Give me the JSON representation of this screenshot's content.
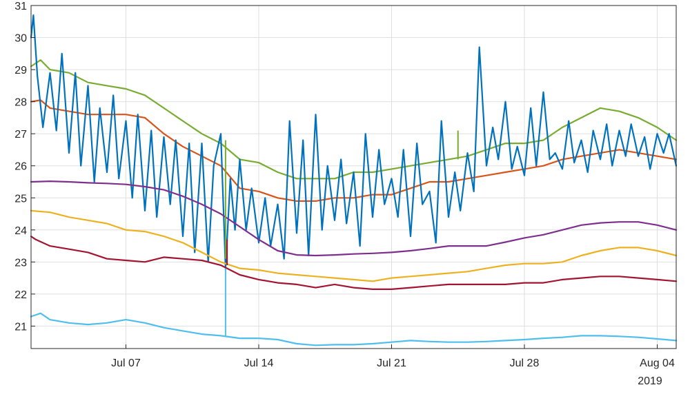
{
  "chart_data": {
    "type": "line",
    "title": "",
    "xlabel": "",
    "ylabel": "",
    "x_start": "2019-07-02",
    "x_end": "2019-08-05",
    "xlim": [
      "2019-07-02",
      "2019-08-05"
    ],
    "ylim": [
      20.3,
      31
    ],
    "grid": true,
    "legend": "none",
    "x_ticks": [
      {
        "date": "2019-07-07",
        "label": "Jul 07"
      },
      {
        "date": "2019-07-14",
        "label": "Jul 14"
      },
      {
        "date": "2019-07-21",
        "label": "Jul 21"
      },
      {
        "date": "2019-07-28",
        "label": "Jul 28"
      },
      {
        "date": "2019-08-04",
        "label": "Aug 04"
      }
    ],
    "x_secondary_label": "2019",
    "y_ticks": [
      21,
      22,
      23,
      24,
      25,
      26,
      27,
      28,
      29,
      30,
      31
    ],
    "series": [
      {
        "color": "#77ac30",
        "x": [
          "2019-07-02",
          "2019-07-02 12:00",
          "2019-07-03",
          "2019-07-04",
          "2019-07-05",
          "2019-07-06",
          "2019-07-07",
          "2019-07-08",
          "2019-07-09",
          "2019-07-10",
          "2019-07-11",
          "2019-07-12",
          "2019-07-13",
          "2019-07-14",
          "2019-07-15",
          "2019-07-16",
          "2019-07-17",
          "2019-07-18",
          "2019-07-19",
          "2019-07-20",
          "2019-07-21",
          "2019-07-22",
          "2019-07-23",
          "2019-07-24",
          "2019-07-25",
          "2019-07-26",
          "2019-07-27",
          "2019-07-28",
          "2019-07-29",
          "2019-07-30",
          "2019-07-31",
          "2019-08-01",
          "2019-08-02",
          "2019-08-03",
          "2019-08-04",
          "2019-08-05"
        ],
        "y": [
          29.1,
          29.3,
          29.0,
          28.9,
          28.6,
          28.5,
          28.4,
          28.2,
          27.8,
          27.4,
          27.0,
          26.7,
          26.2,
          26.1,
          25.8,
          25.6,
          25.6,
          25.6,
          25.8,
          25.8,
          25.9,
          26.0,
          26.1,
          26.2,
          26.3,
          26.5,
          26.7,
          26.7,
          26.8,
          27.2,
          27.5,
          27.8,
          27.7,
          27.5,
          27.2,
          26.8
        ]
      },
      {
        "color": "#d95319",
        "x": [
          "2019-07-02",
          "2019-07-02 12:00",
          "2019-07-03",
          "2019-07-04",
          "2019-07-05",
          "2019-07-06",
          "2019-07-07",
          "2019-07-08",
          "2019-07-09",
          "2019-07-10",
          "2019-07-11",
          "2019-07-12",
          "2019-07-13",
          "2019-07-14",
          "2019-07-15",
          "2019-07-16",
          "2019-07-17",
          "2019-07-18",
          "2019-07-19",
          "2019-07-20",
          "2019-07-21",
          "2019-07-22",
          "2019-07-23",
          "2019-07-24",
          "2019-07-25",
          "2019-07-26",
          "2019-07-27",
          "2019-07-28",
          "2019-07-29",
          "2019-07-30",
          "2019-07-31",
          "2019-08-01",
          "2019-08-02",
          "2019-08-03",
          "2019-08-04",
          "2019-08-05"
        ],
        "y": [
          28.0,
          28.05,
          27.8,
          27.7,
          27.6,
          27.6,
          27.6,
          27.5,
          27.0,
          26.6,
          26.3,
          26.0,
          25.3,
          25.2,
          25.0,
          24.9,
          24.9,
          25.0,
          25.0,
          25.1,
          25.1,
          25.3,
          25.5,
          25.5,
          25.6,
          25.7,
          25.8,
          25.9,
          26.0,
          26.2,
          26.3,
          26.4,
          26.5,
          26.4,
          26.3,
          26.2
        ]
      },
      {
        "color": "#0072bd",
        "x": [
          "2019-07-02",
          "2019-07-02 03:00",
          "2019-07-02 08:00",
          "2019-07-02 15:00",
          "2019-07-03",
          "2019-07-03 08:00",
          "2019-07-03 15:00",
          "2019-07-04",
          "2019-07-04 08:00",
          "2019-07-04 15:00",
          "2019-07-05",
          "2019-07-05 08:00",
          "2019-07-05 15:00",
          "2019-07-06",
          "2019-07-06 08:00",
          "2019-07-06 15:00",
          "2019-07-07",
          "2019-07-07 08:00",
          "2019-07-07 15:00",
          "2019-07-08",
          "2019-07-08 08:00",
          "2019-07-08 15:00",
          "2019-07-09",
          "2019-07-09 08:00",
          "2019-07-09 15:00",
          "2019-07-10",
          "2019-07-10 08:00",
          "2019-07-10 15:00",
          "2019-07-11",
          "2019-07-11 08:00",
          "2019-07-11 15:00",
          "2019-07-12",
          "2019-07-12 06:00",
          "2019-07-12 12:00",
          "2019-07-12 18:00",
          "2019-07-13",
          "2019-07-13 08:00",
          "2019-07-13 15:00",
          "2019-07-14",
          "2019-07-14 08:00",
          "2019-07-14 15:00",
          "2019-07-15",
          "2019-07-15 08:00",
          "2019-07-15 15:00",
          "2019-07-16",
          "2019-07-16 08:00",
          "2019-07-16 15:00",
          "2019-07-17",
          "2019-07-17 08:00",
          "2019-07-17 15:00",
          "2019-07-18",
          "2019-07-18 08:00",
          "2019-07-18 15:00",
          "2019-07-19",
          "2019-07-19 08:00",
          "2019-07-19 15:00",
          "2019-07-20",
          "2019-07-20 08:00",
          "2019-07-20 15:00",
          "2019-07-21",
          "2019-07-21 08:00",
          "2019-07-21 15:00",
          "2019-07-22",
          "2019-07-22 08:00",
          "2019-07-22 15:00",
          "2019-07-23",
          "2019-07-23 08:00",
          "2019-07-23 15:00",
          "2019-07-24",
          "2019-07-24 08:00",
          "2019-07-24 15:00",
          "2019-07-25",
          "2019-07-25 08:00",
          "2019-07-25 15:00",
          "2019-07-26",
          "2019-07-26 08:00",
          "2019-07-26 15:00",
          "2019-07-27",
          "2019-07-27 08:00",
          "2019-07-27 15:00",
          "2019-07-28",
          "2019-07-28 08:00",
          "2019-07-28 15:00",
          "2019-07-29",
          "2019-07-29 08:00",
          "2019-07-29 15:00",
          "2019-07-30",
          "2019-07-30 08:00",
          "2019-07-30 15:00",
          "2019-07-31",
          "2019-07-31 08:00",
          "2019-07-31 15:00",
          "2019-08-01",
          "2019-08-01 08:00",
          "2019-08-01 15:00",
          "2019-08-02",
          "2019-08-02 08:00",
          "2019-08-02 15:00",
          "2019-08-03",
          "2019-08-03 08:00",
          "2019-08-03 15:00",
          "2019-08-04",
          "2019-08-04 08:00",
          "2019-08-04 15:00",
          "2019-08-05"
        ],
        "y": [
          30.0,
          30.7,
          28.8,
          27.2,
          28.9,
          27.1,
          29.5,
          26.4,
          28.9,
          26.0,
          28.5,
          25.5,
          27.8,
          25.8,
          28.2,
          25.6,
          27.4,
          25.0,
          27.6,
          24.6,
          27.1,
          24.4,
          26.9,
          24.8,
          26.8,
          23.8,
          26.7,
          23.3,
          26.7,
          23.0,
          26.0,
          27.0,
          22.8,
          25.6,
          24.0,
          26.2,
          24.0,
          25.3,
          23.6,
          25.0,
          23.5,
          24.8,
          23.1,
          27.4,
          23.9,
          26.8,
          23.2,
          27.6,
          24.0,
          26.0,
          24.3,
          26.2,
          24.2,
          25.8,
          23.5,
          27.0,
          24.4,
          26.5,
          24.8,
          25.6,
          24.4,
          26.5,
          23.8,
          26.7,
          24.8,
          25.2,
          23.6,
          27.4,
          24.4,
          25.8,
          24.6,
          26.4,
          25.2,
          29.7,
          26.0,
          27.2,
          26.2,
          28.0,
          25.9,
          26.6,
          25.7,
          27.8,
          26.0,
          28.3,
          26.2,
          26.4,
          25.9,
          27.4,
          26.1,
          26.8,
          25.8,
          27.1,
          26.2,
          27.3,
          26.0,
          27.1,
          26.3,
          27.3,
          26.3,
          26.9,
          25.9,
          27.0,
          26.4,
          27.0,
          26.0
        ]
      },
      {
        "color": "#7e2f8e",
        "x": [
          "2019-07-02",
          "2019-07-03",
          "2019-07-04",
          "2019-07-05",
          "2019-07-06",
          "2019-07-07",
          "2019-07-08",
          "2019-07-09",
          "2019-07-10",
          "2019-07-11",
          "2019-07-12",
          "2019-07-13",
          "2019-07-14",
          "2019-07-15",
          "2019-07-16",
          "2019-07-17",
          "2019-07-18",
          "2019-07-19",
          "2019-07-20",
          "2019-07-21",
          "2019-07-22",
          "2019-07-23",
          "2019-07-24",
          "2019-07-25",
          "2019-07-26",
          "2019-07-27",
          "2019-07-28",
          "2019-07-29",
          "2019-07-30",
          "2019-07-31",
          "2019-08-01",
          "2019-08-02",
          "2019-08-03",
          "2019-08-04",
          "2019-08-05"
        ],
        "y": [
          25.5,
          25.52,
          25.5,
          25.47,
          25.45,
          25.42,
          25.35,
          25.25,
          25.05,
          24.8,
          24.5,
          24.1,
          23.7,
          23.35,
          23.22,
          23.2,
          23.22,
          23.25,
          23.27,
          23.3,
          23.35,
          23.42,
          23.5,
          23.5,
          23.5,
          23.62,
          23.75,
          23.85,
          24.0,
          24.15,
          24.22,
          24.25,
          24.25,
          24.15,
          24.0
        ]
      },
      {
        "color": "#edb120",
        "x": [
          "2019-07-02",
          "2019-07-03",
          "2019-07-04",
          "2019-07-05",
          "2019-07-06",
          "2019-07-07",
          "2019-07-08",
          "2019-07-09",
          "2019-07-10",
          "2019-07-11",
          "2019-07-12",
          "2019-07-13",
          "2019-07-14",
          "2019-07-15",
          "2019-07-16",
          "2019-07-17",
          "2019-07-18",
          "2019-07-19",
          "2019-07-20",
          "2019-07-21",
          "2019-07-22",
          "2019-07-23",
          "2019-07-24",
          "2019-07-25",
          "2019-07-26",
          "2019-07-27",
          "2019-07-28",
          "2019-07-29",
          "2019-07-30",
          "2019-07-31",
          "2019-08-01",
          "2019-08-02",
          "2019-08-03",
          "2019-08-04",
          "2019-08-05"
        ],
        "y": [
          24.6,
          24.55,
          24.4,
          24.3,
          24.2,
          24.0,
          23.95,
          23.8,
          23.6,
          23.3,
          23.0,
          22.8,
          22.75,
          22.65,
          22.6,
          22.55,
          22.5,
          22.45,
          22.4,
          22.5,
          22.55,
          22.6,
          22.65,
          22.7,
          22.8,
          22.9,
          22.95,
          22.95,
          23.0,
          23.2,
          23.35,
          23.45,
          23.45,
          23.35,
          23.2
        ]
      },
      {
        "color": "#a2142f",
        "x": [
          "2019-07-02",
          "2019-07-02 06:00",
          "2019-07-03",
          "2019-07-04",
          "2019-07-05",
          "2019-07-06",
          "2019-07-07",
          "2019-07-08",
          "2019-07-09",
          "2019-07-10",
          "2019-07-11",
          "2019-07-12",
          "2019-07-13",
          "2019-07-14",
          "2019-07-15",
          "2019-07-16",
          "2019-07-17",
          "2019-07-18",
          "2019-07-19",
          "2019-07-20",
          "2019-07-21",
          "2019-07-22",
          "2019-07-23",
          "2019-07-24",
          "2019-07-25",
          "2019-07-26",
          "2019-07-27",
          "2019-07-28",
          "2019-07-29",
          "2019-07-30",
          "2019-07-31",
          "2019-08-01",
          "2019-08-02",
          "2019-08-03",
          "2019-08-04",
          "2019-08-05"
        ],
        "y": [
          23.8,
          23.7,
          23.5,
          23.4,
          23.3,
          23.1,
          23.05,
          23.0,
          23.15,
          23.1,
          23.05,
          22.9,
          22.6,
          22.45,
          22.35,
          22.3,
          22.2,
          22.3,
          22.2,
          22.15,
          22.15,
          22.2,
          22.25,
          22.3,
          22.3,
          22.3,
          22.3,
          22.35,
          22.35,
          22.45,
          22.5,
          22.55,
          22.55,
          22.5,
          22.45,
          22.4
        ]
      },
      {
        "color": "#4dbeee",
        "x": [
          "2019-07-02",
          "2019-07-02 12:00",
          "2019-07-03",
          "2019-07-04",
          "2019-07-05",
          "2019-07-06",
          "2019-07-07",
          "2019-07-08",
          "2019-07-09",
          "2019-07-10",
          "2019-07-11",
          "2019-07-12",
          "2019-07-13",
          "2019-07-14",
          "2019-07-15",
          "2019-07-16",
          "2019-07-17",
          "2019-07-18",
          "2019-07-19",
          "2019-07-20",
          "2019-07-21",
          "2019-07-22",
          "2019-07-23",
          "2019-07-24",
          "2019-07-25",
          "2019-07-26",
          "2019-07-27",
          "2019-07-28",
          "2019-07-29",
          "2019-07-30",
          "2019-07-31",
          "2019-08-01",
          "2019-08-02",
          "2019-08-03",
          "2019-08-04",
          "2019-08-05"
        ],
        "y": [
          21.3,
          21.4,
          21.2,
          21.1,
          21.05,
          21.1,
          21.2,
          21.1,
          20.95,
          20.85,
          20.75,
          20.7,
          20.62,
          20.62,
          20.58,
          20.45,
          20.4,
          20.42,
          20.42,
          20.45,
          20.5,
          20.55,
          20.52,
          20.5,
          20.5,
          20.52,
          20.55,
          20.58,
          20.62,
          20.65,
          20.7,
          20.7,
          20.68,
          20.65,
          20.6,
          20.55
        ]
      }
    ],
    "spikes": [
      {
        "color": "#77ac30",
        "x": "2019-07-12 06:00",
        "from": 26.8,
        "to": 23.1
      },
      {
        "color": "#a2142f",
        "x": "2019-07-12 08:00",
        "from": 22.9,
        "to": 23.7
      },
      {
        "color": "#4dbeee",
        "x": "2019-07-12 06:00",
        "from": 20.7,
        "to": 22.8
      },
      {
        "color": "#77ac30",
        "x": "2019-07-24 12:00",
        "from": 26.2,
        "to": 27.1
      }
    ]
  }
}
